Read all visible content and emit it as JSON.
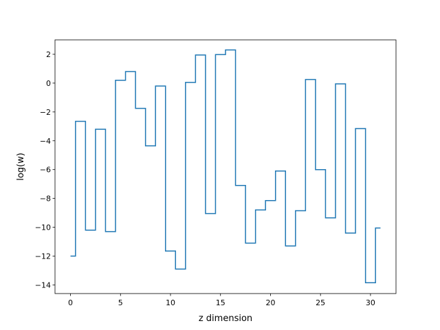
{
  "chart_data": {
    "type": "line",
    "step": "mid",
    "xlabel": "z dimension",
    "ylabel": "log(w)",
    "xlim": [
      -1.55,
      32.55
    ],
    "ylim": [
      -14.6,
      3.0
    ],
    "xticks": [
      0,
      5,
      10,
      15,
      20,
      25,
      30
    ],
    "yticks": [
      2,
      0,
      -2,
      -4,
      -6,
      -8,
      -10,
      -12,
      -14
    ],
    "grid": false,
    "series": [
      {
        "color": "#1f77b4",
        "x": [
          0,
          1,
          2,
          3,
          4,
          5,
          6,
          7,
          8,
          9,
          10,
          11,
          12,
          13,
          14,
          15,
          16,
          17,
          18,
          19,
          20,
          21,
          22,
          23,
          24,
          25,
          26,
          27,
          28,
          29,
          30,
          31
        ],
        "y": [
          -12.0,
          -2.65,
          -10.2,
          -3.2,
          -10.3,
          0.2,
          0.8,
          -1.75,
          -4.35,
          -0.2,
          -11.65,
          -12.9,
          0.05,
          1.95,
          -9.05,
          1.98,
          2.3,
          -7.1,
          -11.1,
          -8.8,
          -8.15,
          -6.1,
          -11.3,
          -8.85,
          0.25,
          -6.0,
          -9.35,
          -0.05,
          -10.4,
          -3.15,
          -13.85,
          -10.05
        ]
      }
    ]
  }
}
